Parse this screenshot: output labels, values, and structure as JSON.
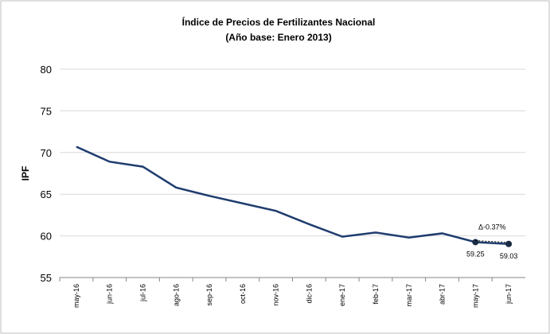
{
  "chart_data": {
    "type": "line",
    "title": "Índice de Precios de Fertilizantes Nacional",
    "subtitle": "(Año base: Enero 2013)",
    "y_label": "IPF",
    "categories": [
      "may-16",
      "jun-16",
      "jul-16",
      "ago-16",
      "sep-16",
      "oct-16",
      "nov-16",
      "dic-16",
      "ene-17",
      "feb-17",
      "mar-17",
      "abr-17",
      "may-17",
      "jun-17"
    ],
    "series": [
      {
        "name": "IPF",
        "color": "#1f3c6e",
        "values": [
          70.7,
          68.9,
          68.3,
          65.8,
          64.8,
          63.9,
          63.0,
          61.4,
          59.9,
          60.4,
          59.8,
          60.3,
          59.25,
          59.03
        ],
        "value_labels": [
          null,
          null,
          null,
          null,
          null,
          null,
          null,
          null,
          null,
          null,
          null,
          null,
          "59.25",
          "59.03"
        ]
      }
    ],
    "annotation": "Δ-0.37%",
    "ylim": [
      55,
      80
    ],
    "yticks": [
      55,
      60,
      65,
      70,
      75,
      80
    ],
    "grid": true
  }
}
